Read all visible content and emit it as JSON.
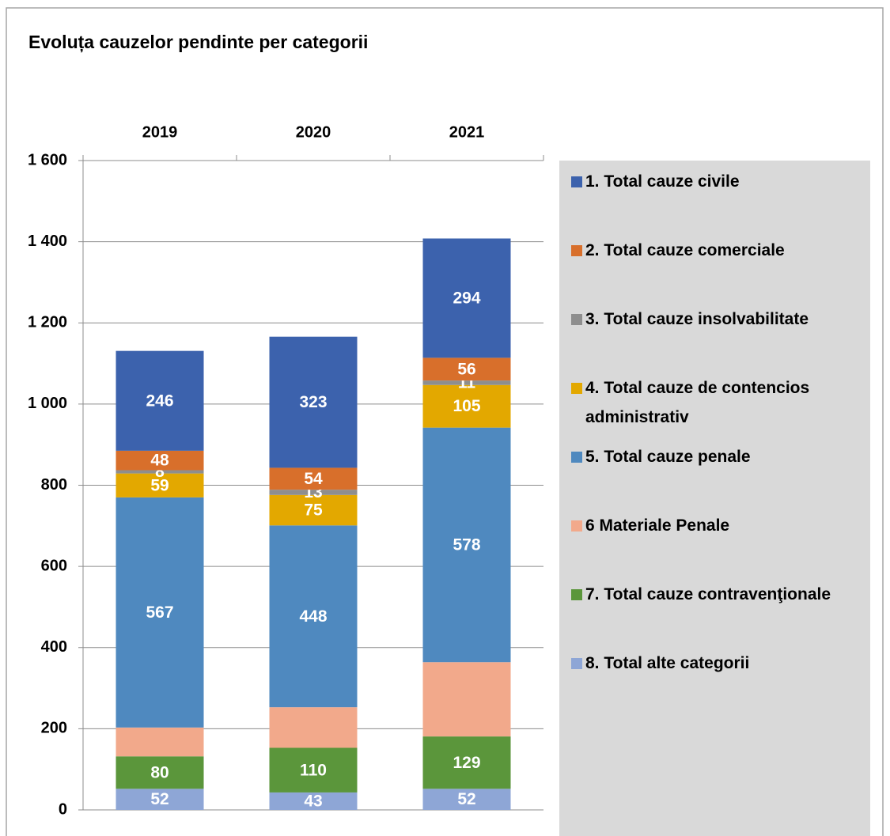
{
  "chart_data": {
    "type": "stacked_bar",
    "title": "Evoluța cauzelor pendinte per categorii",
    "categories": [
      "2019",
      "2020",
      "2021"
    ],
    "series": [
      {
        "name": "8. Total alte categorii",
        "color": "#8ea6d6",
        "values": [
          52,
          43,
          52
        ]
      },
      {
        "name": "7. Total cauze contravenţionale",
        "color": "#5b963b",
        "values": [
          80,
          110,
          129
        ]
      },
      {
        "name": "6 Materiale Penale",
        "color": "#f2a98b",
        "values": [
          71,
          100,
          183
        ],
        "show_labels": false
      },
      {
        "name": "5. Total cauze penale",
        "color": "#4f89bf",
        "values": [
          567,
          448,
          578
        ]
      },
      {
        "name": "4. Total cauze de contencios administrativ",
        "color": "#e3a800",
        "values": [
          59,
          75,
          105
        ]
      },
      {
        "name": "3. Total cauze insolvabilitate",
        "color": "#8e8e8e",
        "values": [
          8,
          13,
          11
        ]
      },
      {
        "name": "2. Total cauze comerciale",
        "color": "#d86f2b",
        "values": [
          48,
          54,
          56
        ]
      },
      {
        "name": "1. Total cauze civile",
        "color": "#3c62ad",
        "values": [
          246,
          323,
          294
        ]
      }
    ],
    "ylim": [
      0,
      1600
    ],
    "yticks": [
      0,
      200,
      400,
      600,
      800,
      {
        "value": 1000,
        "label": "1 000"
      },
      {
        "value": 1200,
        "label": "1 200"
      },
      {
        "value": 1400,
        "label": "1 400"
      },
      {
        "value": 1600,
        "label": "1 600"
      }
    ],
    "grid": true
  }
}
